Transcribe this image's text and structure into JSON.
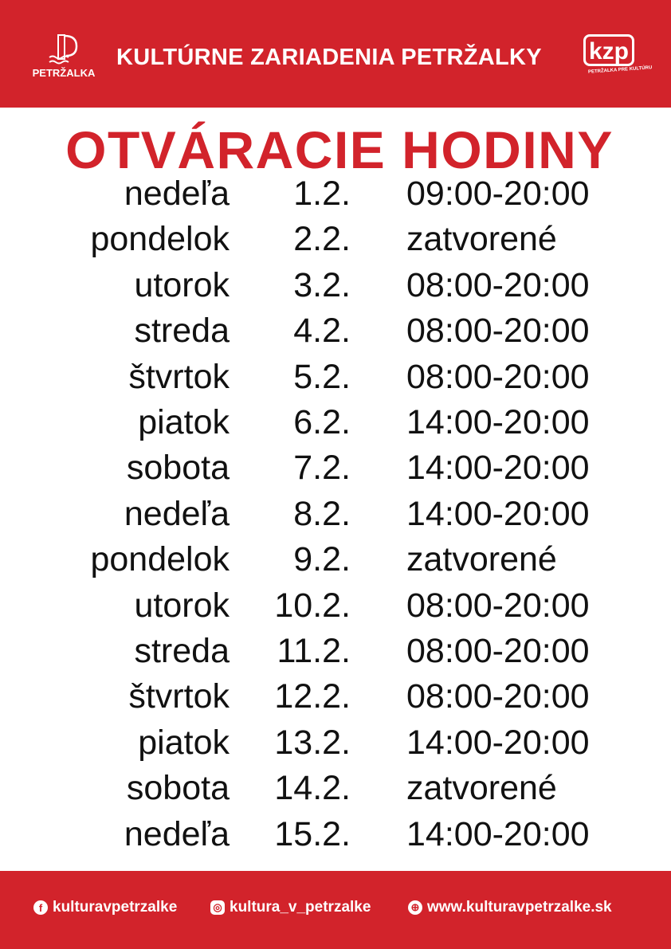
{
  "header": {
    "organization": "KULTÚRNE ZARIADENIA PETRŽALKY",
    "logo_left_text": "PETRŽALKA",
    "logo_right_text": "kzp",
    "logo_right_tagline": "PETRŽALKA PRE KULTÚRU"
  },
  "title": "OTVÁRACIE HODINY",
  "schedule": [
    {
      "day": "nedeľa",
      "date": "1.2.",
      "hours": "09:00-20:00"
    },
    {
      "day": "pondelok",
      "date": "2.2.",
      "hours": "zatvorené"
    },
    {
      "day": "utorok",
      "date": "3.2.",
      "hours": "08:00-20:00"
    },
    {
      "day": "streda",
      "date": "4.2.",
      "hours": "08:00-20:00"
    },
    {
      "day": "štvrtok",
      "date": "5.2.",
      "hours": "08:00-20:00"
    },
    {
      "day": "piatok",
      "date": "6.2.",
      "hours": "14:00-20:00"
    },
    {
      "day": "sobota",
      "date": "7.2.",
      "hours": "14:00-20:00"
    },
    {
      "day": "nedeľa",
      "date": "8.2.",
      "hours": "14:00-20:00"
    },
    {
      "day": "pondelok",
      "date": "9.2.",
      "hours": "zatvorené"
    },
    {
      "day": "utorok",
      "date": "10.2.",
      "hours": "08:00-20:00"
    },
    {
      "day": "streda",
      "date": "11.2.",
      "hours": "08:00-20:00"
    },
    {
      "day": "štvrtok",
      "date": "12.2.",
      "hours": "08:00-20:00"
    },
    {
      "day": "piatok",
      "date": "13.2.",
      "hours": "14:00-20:00"
    },
    {
      "day": "sobota",
      "date": "14.2.",
      "hours": "zatvorené"
    },
    {
      "day": "nedeľa",
      "date": "15.2.",
      "hours": "14:00-20:00"
    }
  ],
  "footer": {
    "facebook": "kulturavpetrzalke",
    "instagram": "kultura_v_petrzalke",
    "website": "www.kulturavpetrzalke.sk"
  },
  "colors": {
    "brand_red": "#d2232b"
  }
}
